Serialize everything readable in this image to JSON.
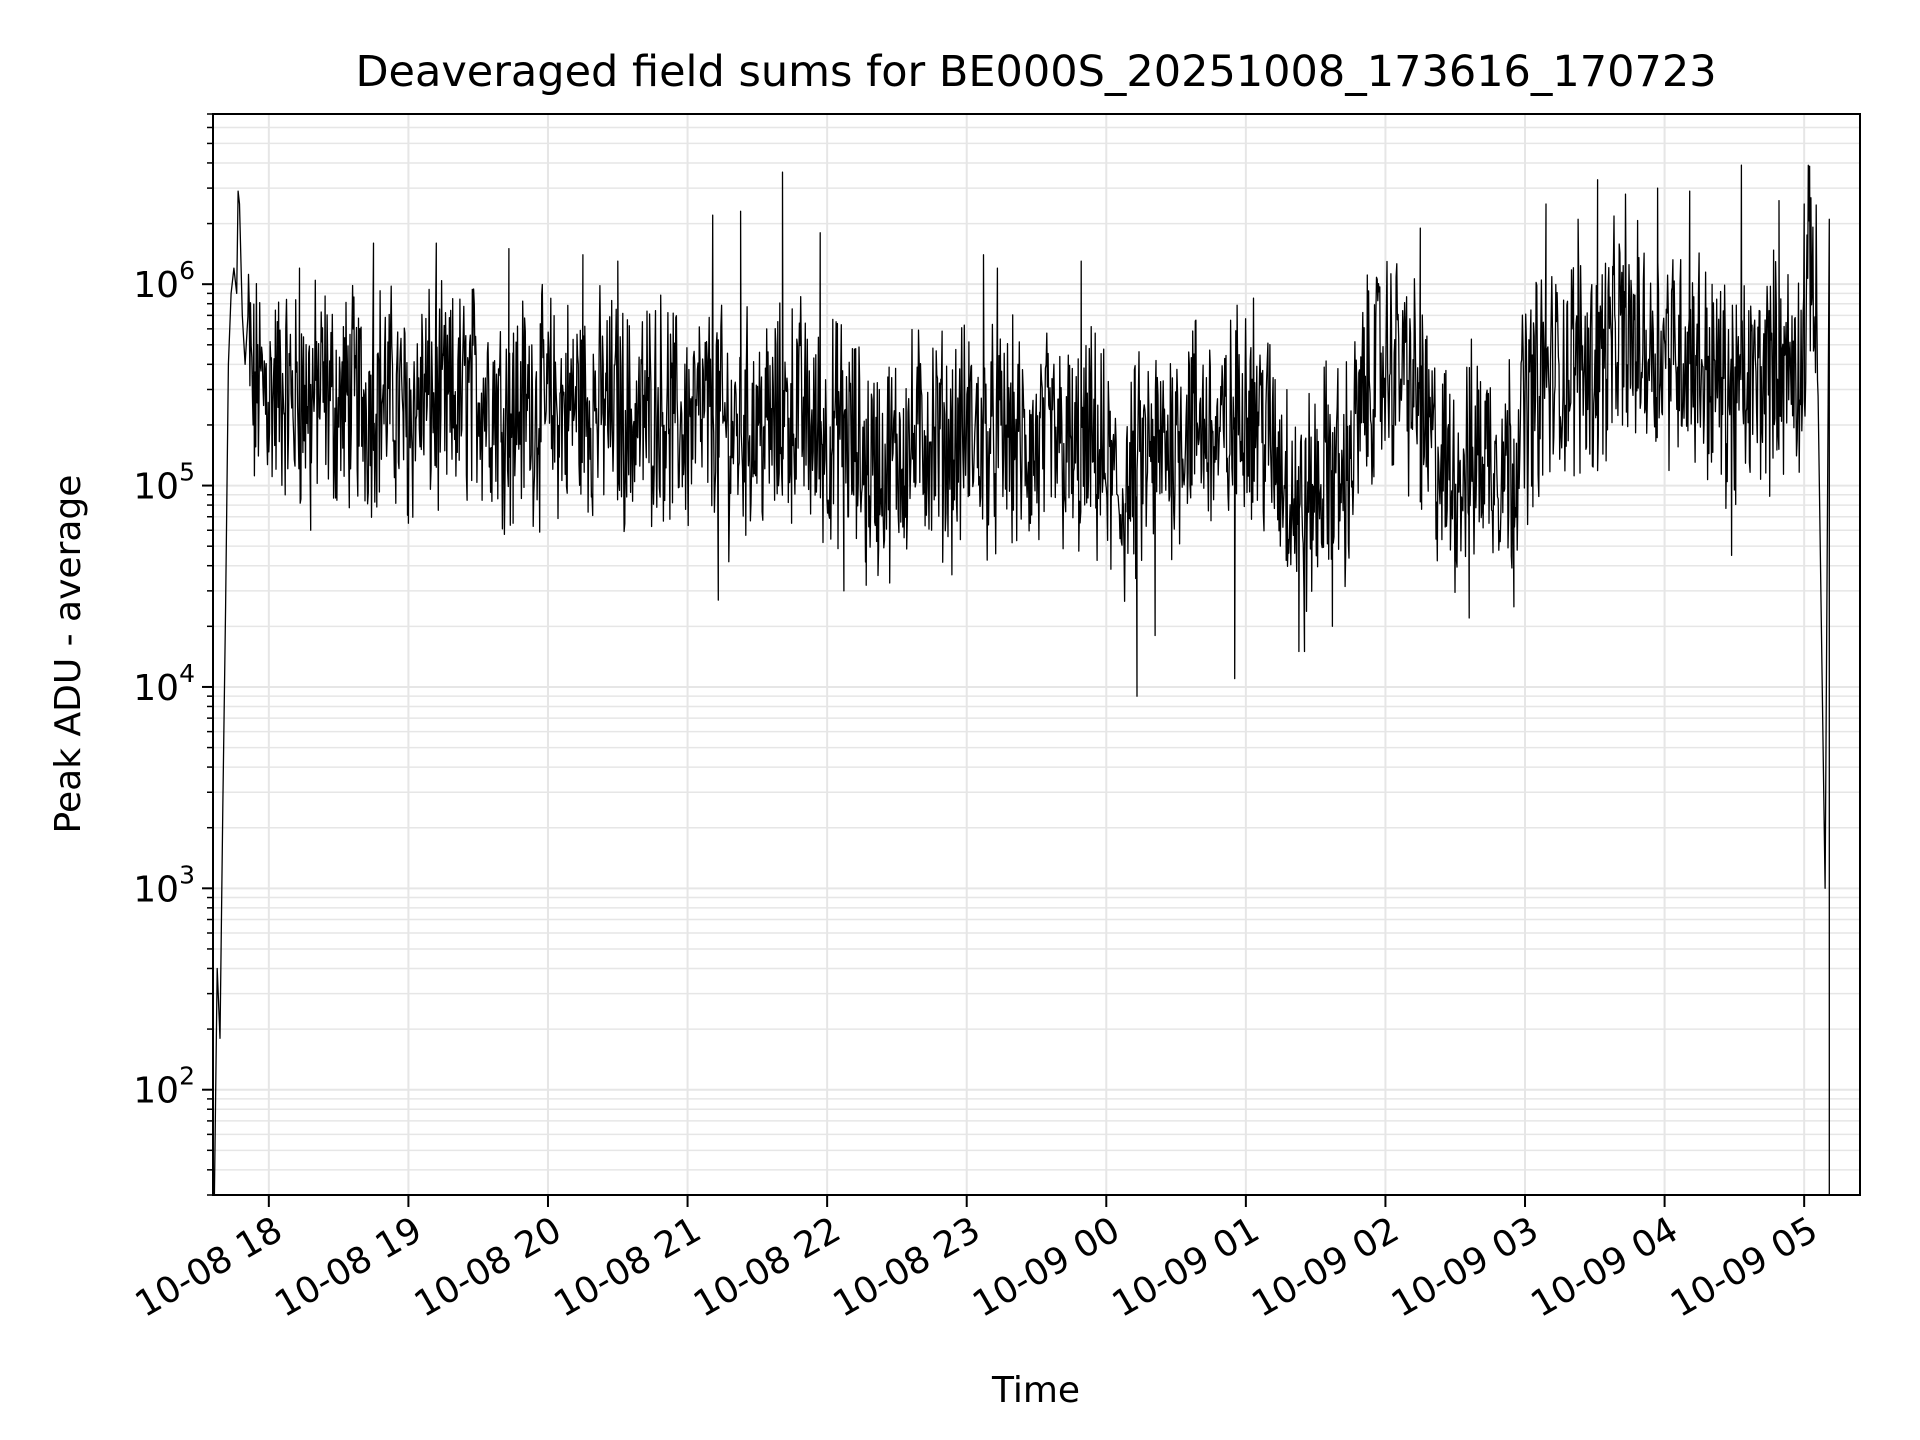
{
  "chart_data": {
    "type": "line",
    "title": "Deaveraged field sums for BE000S_20251008_173616_170723",
    "xlabel": "Time",
    "ylabel": "Peak ADU - average",
    "yscale": "log",
    "ylim": [
      30,
      7000000
    ],
    "xlim_hours": [
      -0.4,
      11.4
    ],
    "grid": true,
    "line_color": "#000000",
    "grid_color": "#e6e6e6",
    "x_ticks": [
      {
        "hour": 0,
        "label": "10-08 18"
      },
      {
        "hour": 1,
        "label": "10-08 19"
      },
      {
        "hour": 2,
        "label": "10-08 20"
      },
      {
        "hour": 3,
        "label": "10-08 21"
      },
      {
        "hour": 4,
        "label": "10-08 22"
      },
      {
        "hour": 5,
        "label": "10-08 23"
      },
      {
        "hour": 6,
        "label": "10-09 00"
      },
      {
        "hour": 7,
        "label": "10-09 01"
      },
      {
        "hour": 8,
        "label": "10-09 02"
      },
      {
        "hour": 9,
        "label": "10-09 03"
      },
      {
        "hour": 10,
        "label": "10-09 04"
      },
      {
        "hour": 11,
        "label": "10-09 05"
      }
    ],
    "y_ticks": [
      {
        "value": 100,
        "base": "10",
        "exp": "2"
      },
      {
        "value": 1000,
        "base": "10",
        "exp": "3"
      },
      {
        "value": 10000,
        "base": "10",
        "exp": "4"
      },
      {
        "value": 100000,
        "base": "10",
        "exp": "5"
      },
      {
        "value": 1000000,
        "base": "10",
        "exp": "6"
      }
    ],
    "series": [
      {
        "name": "field sums",
        "x_hours": [
          -0.39,
          -0.37,
          -0.35,
          -0.33,
          -0.31,
          -0.29,
          -0.27,
          -0.25,
          -0.23,
          -0.21,
          -0.19,
          -0.17,
          -0.15,
          -0.12,
          -0.1,
          -0.08,
          -0.06,
          -0.04,
          -0.02,
          0,
          0.1,
          0.2,
          0.3,
          0.4,
          0.5,
          0.6,
          0.7,
          0.8,
          0.9,
          1,
          1.1,
          1.2,
          1.3,
          1.4,
          1.5,
          1.6,
          1.7,
          1.8,
          1.9,
          2,
          2.1,
          2.2,
          2.3,
          2.4,
          2.5,
          2.6,
          2.7,
          2.8,
          2.9,
          3,
          3.1,
          3.2,
          3.3,
          3.4,
          3.5,
          3.6,
          3.7,
          3.8,
          3.9,
          4,
          4.1,
          4.2,
          4.3,
          4.4,
          4.5,
          4.6,
          4.7,
          4.8,
          4.9,
          5,
          5.1,
          5.2,
          5.3,
          5.4,
          5.5,
          5.6,
          5.7,
          5.8,
          5.9,
          6,
          6.1,
          6.2,
          6.3,
          6.4,
          6.5,
          6.6,
          6.7,
          6.8,
          6.9,
          7,
          7.1,
          7.2,
          7.3,
          7.4,
          7.5,
          7.6,
          7.7,
          7.8,
          7.9,
          8,
          8.1,
          8.2,
          8.3,
          8.4,
          8.5,
          8.6,
          8.7,
          8.8,
          8.9,
          9,
          9.1,
          9.2,
          9.3,
          9.4,
          9.5,
          9.6,
          9.7,
          9.8,
          9.9,
          10,
          10.1,
          10.2,
          10.3,
          10.4,
          10.5,
          10.6,
          10.7,
          10.8,
          10.9,
          11,
          11.05,
          11.1,
          11.15,
          11.18,
          11.2,
          11.22,
          11.25,
          11.28,
          11.31
        ],
        "values": [
          30,
          400,
          180,
          2500,
          25000,
          400000,
          900000,
          1200000,
          900000,
          2500000,
          700000,
          400000,
          600000,
          300000,
          250000,
          350000,
          300000,
          300000,
          320000,
          280000,
          300000,
          260000,
          280000,
          300000,
          240000,
          280000,
          250000,
          300000,
          260000,
          220000,
          280000,
          250000,
          240000,
          280000,
          300000,
          270000,
          230000,
          260000,
          240000,
          250000,
          230000,
          260000,
          240000,
          250000,
          240000,
          200000,
          230000,
          260000,
          210000,
          200000,
          220000,
          240000,
          180000,
          200000,
          210000,
          190000,
          220000,
          250000,
          180000,
          170000,
          200000,
          150000,
          130000,
          120000,
          140000,
          160000,
          180000,
          170000,
          150000,
          190000,
          170000,
          160000,
          180000,
          150000,
          140000,
          170000,
          150000,
          130000,
          160000,
          120000,
          80000,
          110000,
          140000,
          150000,
          180000,
          220000,
          200000,
          160000,
          190000,
          300000,
          220000,
          150000,
          110000,
          70000,
          90000,
          130000,
          100000,
          200000,
          350000,
          400000,
          420000,
          300000,
          180000,
          120000,
          110000,
          130000,
          150000,
          140000,
          130000,
          250000,
          320000,
          350000,
          380000,
          420000,
          380000,
          500000,
          550000,
          520000,
          480000,
          500000,
          480000,
          450000,
          380000,
          320000,
          280000,
          300000,
          350000,
          400000,
          380000,
          420000,
          1800000,
          400000,
          1000,
          30,
          30,
          30,
          30,
          30,
          30
        ],
        "spikes": [
          {
            "hour": -0.35,
            "value": 180
          },
          {
            "hour": -0.22,
            "value": 2900000
          },
          {
            "hour": 0.22,
            "value": 1200000
          },
          {
            "hour": 0.3,
            "value": 60000
          },
          {
            "hour": 0.75,
            "value": 1600000
          },
          {
            "hour": 1.0,
            "value": 65000
          },
          {
            "hour": 1.2,
            "value": 1600000
          },
          {
            "hour": 1.72,
            "value": 1500000
          },
          {
            "hour": 1.75,
            "value": 65000
          },
          {
            "hour": 2.25,
            "value": 1400000
          },
          {
            "hour": 2.5,
            "value": 1300000
          },
          {
            "hour": 3.18,
            "value": 2200000
          },
          {
            "hour": 3.22,
            "value": 27000
          },
          {
            "hour": 3.38,
            "value": 2300000
          },
          {
            "hour": 3.68,
            "value": 3600000
          },
          {
            "hour": 3.95,
            "value": 1800000
          },
          {
            "hour": 4.12,
            "value": 30000
          },
          {
            "hour": 4.28,
            "value": 32000
          },
          {
            "hour": 5.12,
            "value": 1400000
          },
          {
            "hour": 5.22,
            "value": 1200000
          },
          {
            "hour": 5.82,
            "value": 1300000
          },
          {
            "hour": 6.22,
            "value": 9000
          },
          {
            "hour": 6.35,
            "value": 18000
          },
          {
            "hour": 6.92,
            "value": 11000
          },
          {
            "hour": 7.38,
            "value": 15000
          },
          {
            "hour": 7.42,
            "value": 15000
          },
          {
            "hour": 7.62,
            "value": 20000
          },
          {
            "hour": 8.25,
            "value": 1900000
          },
          {
            "hour": 8.6,
            "value": 22000
          },
          {
            "hour": 8.92,
            "value": 25000
          },
          {
            "hour": 9.15,
            "value": 2500000
          },
          {
            "hour": 9.38,
            "value": 2100000
          },
          {
            "hour": 9.52,
            "value": 3300000
          },
          {
            "hour": 9.72,
            "value": 2800000
          },
          {
            "hour": 9.95,
            "value": 3000000
          },
          {
            "hour": 10.18,
            "value": 2900000
          },
          {
            "hour": 10.48,
            "value": 45000
          },
          {
            "hour": 10.55,
            "value": 3900000
          },
          {
            "hour": 10.82,
            "value": 2600000
          },
          {
            "hour": 11.0,
            "value": 2500000
          },
          {
            "hour": 11.18,
            "value": 2100000
          }
        ]
      }
    ]
  }
}
